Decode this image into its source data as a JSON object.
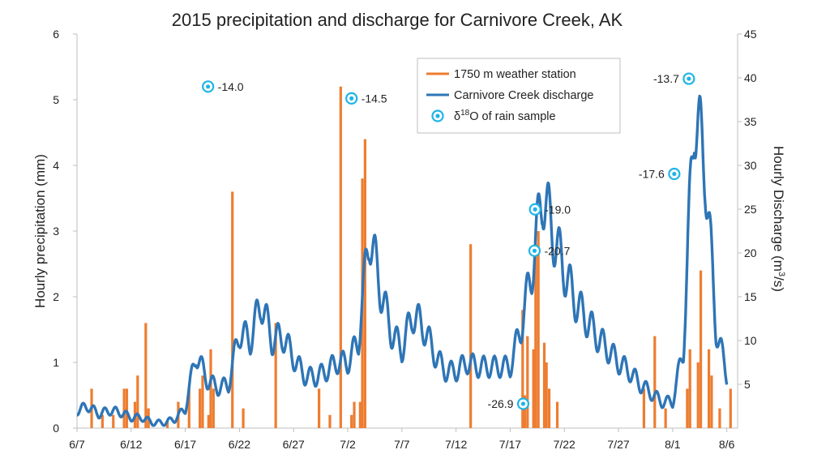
{
  "chart_data": {
    "type": "bar+line+scatter",
    "title": "2015 precipitation and discharge for Carnivore Creek, AK",
    "ylabel_left": "Hourly precipitation (mm)",
    "ylabel_right_main": "Hourly Discharge (m",
    "ylabel_right_sup": "3",
    "ylabel_right_tail": "/s)",
    "ylim_left": [
      0,
      6
    ],
    "ylim_right": [
      0,
      45
    ],
    "left_ticks": [
      "0",
      "1",
      "2",
      "3",
      "4",
      "5",
      "6"
    ],
    "right_ticks": [
      "5",
      "10",
      "15",
      "20",
      "25",
      "30",
      "35",
      "40",
      "45"
    ],
    "x_ticks": [
      "6/7",
      "6/12",
      "6/17",
      "6/22",
      "6/27",
      "7/2",
      "7/7",
      "7/12",
      "7/17",
      "7/22",
      "7/27",
      "8/1",
      "8/6"
    ],
    "x_range_days": [
      0,
      61
    ],
    "grid": false,
    "legend_placement": "top-right",
    "legend": {
      "precip_label": "1750 m weather station",
      "discharge_label": "Carnivore Creek discharge",
      "isotope_label_pre": "δ",
      "isotope_label_sup": "18",
      "isotope_label_post": "O of rain sample"
    },
    "colors": {
      "precip": "#ED7D31",
      "discharge": "#2E75B6",
      "isotope": "#1FB4E6"
    },
    "precip_series": {
      "name": "1750 m weather station",
      "points": [
        [
          "6/8",
          0.6
        ],
        [
          "6/9",
          0.2
        ],
        [
          "6/10",
          0.2
        ],
        [
          "6/11",
          0.6
        ],
        [
          "6/11",
          0.6
        ],
        [
          "6/12",
          0.4
        ],
        [
          "6/12",
          0.8
        ],
        [
          "6/13",
          1.6
        ],
        [
          "6/13",
          0.3
        ],
        [
          "6/15",
          0.1
        ],
        [
          "6/16",
          0.4
        ],
        [
          "6/17",
          0.6
        ],
        [
          "6/18",
          0.6
        ],
        [
          "6/18",
          0.8
        ],
        [
          "6/19",
          1.2
        ],
        [
          "6/19",
          0.6
        ],
        [
          "6/19",
          0.2
        ],
        [
          "6/21",
          3.6
        ],
        [
          "6/22",
          0.3
        ],
        [
          "6/25",
          1.6
        ],
        [
          "6/29",
          0.6
        ],
        [
          "6/30",
          0.2
        ],
        [
          "7/1",
          5.2
        ],
        [
          "7/2",
          0.2
        ],
        [
          "7/2",
          0.4
        ],
        [
          "7/3",
          3.8
        ],
        [
          "7/3",
          4.4
        ],
        [
          "7/3",
          0.4
        ],
        [
          "7/13",
          2.8
        ],
        [
          "7/18",
          0.5
        ],
        [
          "7/18",
          1.4
        ],
        [
          "7/18",
          1.8
        ],
        [
          "7/19",
          2.8
        ],
        [
          "7/19",
          3.0
        ],
        [
          "7/19",
          1.2
        ],
        [
          "7/20",
          1.0
        ],
        [
          "7/20",
          0.6
        ],
        [
          "7/20",
          1.3
        ],
        [
          "7/21",
          0.4
        ],
        [
          "7/29",
          0.6
        ],
        [
          "7/30",
          1.4
        ],
        [
          "7/31",
          0.3
        ],
        [
          "8/2",
          0.6
        ],
        [
          "8/2",
          1.2
        ],
        [
          "8/3",
          1.0
        ],
        [
          "8/3",
          2.4
        ],
        [
          "8/4",
          1.2
        ],
        [
          "8/4",
          0.8
        ],
        [
          "8/5",
          0.3
        ],
        [
          "8/6",
          0.6
        ]
      ]
    },
    "discharge_series": {
      "name": "Carnivore Creek discharge",
      "points": [
        [
          "6/7",
          2.0
        ],
        [
          "6/8",
          2.5
        ],
        [
          "6/9",
          1.6
        ],
        [
          "6/10",
          2.0
        ],
        [
          "6/11",
          1.8
        ],
        [
          "6/12",
          1.2
        ],
        [
          "6/13",
          1.2
        ],
        [
          "6/14",
          0.6
        ],
        [
          "6/15",
          0.6
        ],
        [
          "6/16",
          1.0
        ],
        [
          "6/17",
          2.2
        ],
        [
          "6/18",
          8.5
        ],
        [
          "6/19",
          5.5
        ],
        [
          "6/20",
          4.6
        ],
        [
          "6/21",
          5.0
        ],
        [
          "6/22",
          11.0
        ],
        [
          "6/23",
          10.0
        ],
        [
          "6/24",
          14.5
        ],
        [
          "6/25",
          10.0
        ],
        [
          "6/26",
          10.5
        ],
        [
          "6/27",
          8.0
        ],
        [
          "6/28",
          6.0
        ],
        [
          "6/29",
          5.8
        ],
        [
          "6/30",
          6.5
        ],
        [
          "7/1",
          7.5
        ],
        [
          "7/2",
          7.5
        ],
        [
          "7/3",
          10.0
        ],
        [
          "7/4",
          22.5
        ],
        [
          "7/5",
          16.0
        ],
        [
          "7/6",
          11.0
        ],
        [
          "7/7",
          9.0
        ],
        [
          "7/8",
          13.0
        ],
        [
          "7/9",
          11.5
        ],
        [
          "7/10",
          8.5
        ],
        [
          "7/11",
          6.5
        ],
        [
          "7/12",
          6.5
        ],
        [
          "7/13",
          7.5
        ],
        [
          "7/14",
          7.0
        ],
        [
          "7/15",
          7.0
        ],
        [
          "7/16",
          7.0
        ],
        [
          "7/17",
          7.0
        ],
        [
          "7/18",
          11.5
        ],
        [
          "7/19",
          18.0
        ],
        [
          "7/20",
          27.0
        ],
        [
          "7/21",
          22.0
        ],
        [
          "7/22",
          18.0
        ],
        [
          "7/23",
          14.5
        ],
        [
          "7/24",
          12.5
        ],
        [
          "7/25",
          10.5
        ],
        [
          "7/26",
          9.0
        ],
        [
          "7/27",
          7.5
        ],
        [
          "7/28",
          6.5
        ],
        [
          "7/29",
          5.0
        ],
        [
          "7/30",
          4.0
        ],
        [
          "7/31",
          3.0
        ],
        [
          "8/1",
          3.0
        ],
        [
          "8/2",
          9.0
        ],
        [
          "8/3",
          36.5
        ],
        [
          "8/4",
          30.0
        ],
        [
          "8/5",
          11.5
        ],
        [
          "8/6",
          6.0
        ]
      ]
    },
    "isotope_samples": [
      {
        "date": "6/19",
        "precip_mm": 5.2,
        "label": "-14.0"
      },
      {
        "date": "7/2",
        "precip_mm": 5.02,
        "label": "-14.5"
      },
      {
        "date": "7/19",
        "precip_mm": 3.33,
        "label": "-19.0"
      },
      {
        "date": "7/19",
        "precip_mm": 2.7,
        "label": "-20.7"
      },
      {
        "date": "7/18",
        "precip_mm": 0.37,
        "label": "-26.9"
      },
      {
        "date": "8/1",
        "precip_mm": 3.87,
        "label": "-17.6"
      },
      {
        "date": "8/2",
        "precip_mm": 5.32,
        "label": "-13.7"
      }
    ]
  }
}
